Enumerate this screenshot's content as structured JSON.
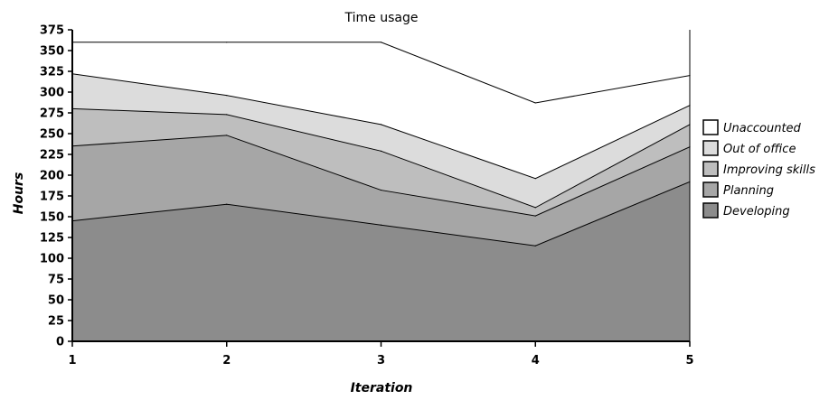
{
  "chart_data": {
    "type": "area",
    "stacked": true,
    "title": "Time usage",
    "xlabel": "Iteration",
    "ylabel": "Hours",
    "x": [
      1,
      2,
      3,
      4,
      5
    ],
    "x_tick_labels": [
      "1",
      "2",
      "3",
      "4",
      "5"
    ],
    "ylim": [
      0,
      375
    ],
    "y_ticks": [
      0,
      25,
      50,
      75,
      100,
      125,
      150,
      175,
      200,
      225,
      250,
      275,
      300,
      325,
      350,
      375
    ],
    "y_tick_labels": [
      "0",
      "25",
      "50",
      "75",
      "100",
      "125",
      "150",
      "175",
      "200",
      "225",
      "250",
      "275",
      "300",
      "325",
      "350",
      "375"
    ],
    "grid": false,
    "legend_position": "right",
    "series": [
      {
        "name": "Developing",
        "color": "#8c8c8c",
        "values": [
          145,
          165,
          140,
          115,
          192
        ]
      },
      {
        "name": "Planning",
        "color": "#a6a6a6",
        "values": [
          90,
          83,
          42,
          36,
          42
        ]
      },
      {
        "name": "Improving skills",
        "color": "#bebebe",
        "values": [
          45,
          25,
          47,
          10,
          27
        ]
      },
      {
        "name": "Out of office",
        "color": "#dcdcdc",
        "values": [
          42,
          23,
          32,
          35,
          23
        ]
      },
      {
        "name": "Unaccounted",
        "color": "#ffffff",
        "values": [
          38,
          64,
          99,
          91,
          36
        ]
      }
    ],
    "legend_order": [
      "Unaccounted",
      "Out of office",
      "Improving skills",
      "Planning",
      "Developing"
    ]
  }
}
